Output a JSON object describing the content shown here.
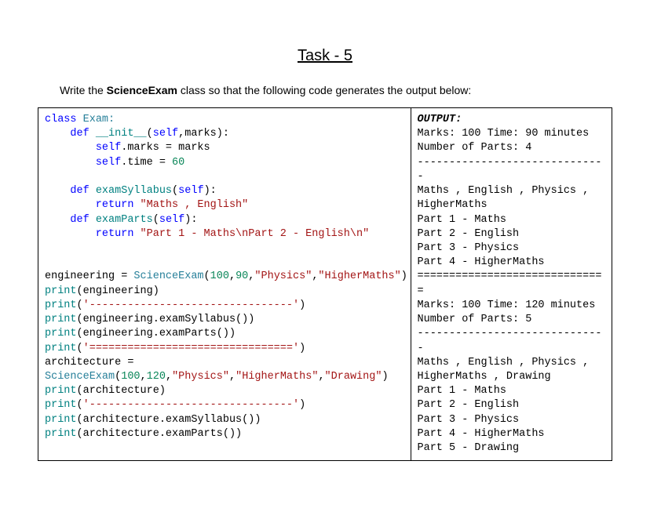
{
  "title": "Task - 5",
  "prompt_pre": "Write the ",
  "prompt_bold": "ScienceExam",
  "prompt_post": " class so that the following code generates the output below:",
  "code": {
    "l1a": "class",
    "l1b": " Exam:",
    "l2a": "    def",
    "l2b": " __init__",
    "l2c": "(",
    "l2d": "self",
    "l2e": ",marks):",
    "l3a": "        ",
    "l3b": "self",
    "l3c": ".marks = marks",
    "l4a": "        ",
    "l4b": "self",
    "l4c": ".time = ",
    "l4d": "60",
    "l6a": "    def",
    "l6b": " examSyllabus",
    "l6c": "(",
    "l6d": "self",
    "l6e": "):",
    "l7a": "        return",
    "l7b": " \"Maths , English\"",
    "l8a": "    def",
    "l8b": " examParts",
    "l8c": "(",
    "l8d": "self",
    "l8e": "):",
    "l9a": "        return",
    "l9b": " \"Part 1 - Maths\\nPart 2 - English\\n\"",
    "l12a": "engineering = ",
    "l12b": "ScienceExam",
    "l12c": "(",
    "l12d": "100",
    "l12e": ",",
    "l12f": "90",
    "l12g": ",",
    "l12h": "\"Physics\"",
    "l12i": ",",
    "l12j": "\"HigherMaths\"",
    "l12k": ")",
    "l13a": "print",
    "l13b": "(engineering)",
    "l14a": "print",
    "l14b": "(",
    "l14c": "'--------------------------------'",
    "l14d": ")",
    "l15a": "print",
    "l15b": "(engineering.examSyllabus())",
    "l16a": "print",
    "l16b": "(engineering.examParts())",
    "l17a": "print",
    "l17b": "(",
    "l17c": "'================================'",
    "l17d": ")",
    "l18a": "architecture = ",
    "l19a": "ScienceExam",
    "l19b": "(",
    "l19c": "100",
    "l19d": ",",
    "l19e": "120",
    "l19f": ",",
    "l19g": "\"Physics\"",
    "l19h": ",",
    "l19i": "\"HigherMaths\"",
    "l19j": ",",
    "l19k": "\"Drawing\"",
    "l19l": ")",
    "l20a": "print",
    "l20b": "(architecture)",
    "l21a": "print",
    "l21b": "(",
    "l21c": "'--------------------------------'",
    "l21d": ")",
    "l22a": "print",
    "l22b": "(architecture.examSyllabus())",
    "l23a": "print",
    "l23b": "(architecture.examParts())"
  },
  "output": {
    "label": "OUTPUT:",
    "l1": "Marks: 100 Time: 90 minutes Number of Parts: 4",
    "l2": "------------------------------",
    "l3": "Maths , English , Physics , HigherMaths",
    "l4": "Part 1 - Maths",
    "l5": "Part 2 - English",
    "l6": "Part 3 - Physics",
    "l7": "Part 4 - HigherMaths",
    "l8": "==============================",
    "l9": "Marks: 100 Time: 120 minutes Number of Parts: 5",
    "l10": "------------------------------",
    "l11": "Maths , English , Physics , HigherMaths , Drawing",
    "l12": "Part 1 - Maths",
    "l13": "Part 2 - English",
    "l14": "Part 3 - Physics",
    "l15": "Part 4 - HigherMaths",
    "l16": "Part 5 - Drawing"
  },
  "style": {
    "kw_color": "#0000ff",
    "fn_color": "#008080",
    "str_color": "#a31515",
    "num_color": "#098658",
    "cls_color": "#267f99",
    "bg_color": "#ffffff",
    "border_color": "#000000",
    "font_mono": "Consolas",
    "font_size_code": 13.5,
    "font_size_title": 20,
    "font_size_prompt": 14
  }
}
